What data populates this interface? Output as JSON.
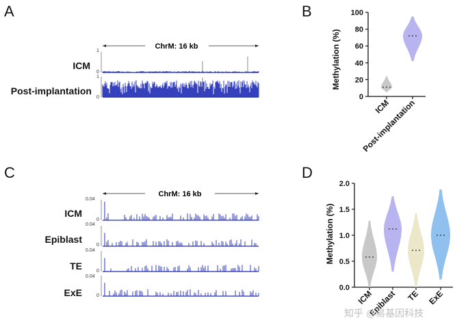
{
  "panels": {
    "A": "A",
    "B": "B",
    "C": "C",
    "D": "D"
  },
  "watermark": "知乎 @易基因科技",
  "colors": {
    "track_blue": "#1f2bb5",
    "ICM_grey": "#c8c8c8",
    "post_purple": "#b7b4f0",
    "epiblast_purple": "#b7b4f0",
    "TE_beige": "#ece7c9",
    "ExE_blue": "#8fc0ee"
  },
  "chart_data": [
    {
      "id": "A",
      "type": "genome-track",
      "region_label": "ChrM: 16 kb",
      "tracks": [
        {
          "name": "ICM",
          "ymax_label": "1",
          "ymin_label": "0",
          "mean_level": 0.06,
          "spikes": [
            0.55,
            0.78
          ]
        },
        {
          "name": "Post-implantation",
          "ymax_label": "1",
          "ymin_label": "0",
          "mean_level": 0.72,
          "spikes": [
            0.95
          ]
        }
      ]
    },
    {
      "id": "B",
      "type": "violin",
      "ylabel": "Methylation (%)",
      "ylim": [
        0,
        100
      ],
      "yticks": [
        "0",
        "20",
        "40",
        "60",
        "80",
        "100"
      ],
      "categories": [
        "ICM",
        "Post-implantation"
      ],
      "series": [
        {
          "name": "ICM",
          "median": 11,
          "min": 5,
          "max": 24
        },
        {
          "name": "Post-implantation",
          "median": 72,
          "min": 42,
          "max": 95
        }
      ]
    },
    {
      "id": "C",
      "type": "genome-track",
      "region_label": "ChrM: 16 kb",
      "tracks": [
        {
          "name": "ICM",
          "ymax_label": "0.04",
          "ymin_label": "0"
        },
        {
          "name": "Epiblast",
          "ymax_label": "0.04",
          "ymin_label": "0"
        },
        {
          "name": "TE",
          "ymax_label": "0.04",
          "ymin_label": "0"
        },
        {
          "name": "ExE",
          "ymax_label": "0.04",
          "ymin_label": "0"
        }
      ]
    },
    {
      "id": "D",
      "type": "violin",
      "ylabel": "Methylation (%)",
      "ylim": [
        0,
        2.0
      ],
      "yticks": [
        "0.0",
        "0.5",
        "1.0",
        "1.5",
        "2.0"
      ],
      "categories": [
        "ICM",
        "Epiblast",
        "TE",
        "ExE"
      ],
      "series": [
        {
          "name": "ICM",
          "median": 0.58,
          "min": 0.0,
          "max": 1.28
        },
        {
          "name": "Epiblast",
          "median": 1.12,
          "min": 0.3,
          "max": 1.75
        },
        {
          "name": "TE",
          "median": 0.71,
          "min": 0.0,
          "max": 1.42
        },
        {
          "name": "ExE",
          "median": 1.0,
          "min": 0.15,
          "max": 1.88
        }
      ]
    }
  ]
}
